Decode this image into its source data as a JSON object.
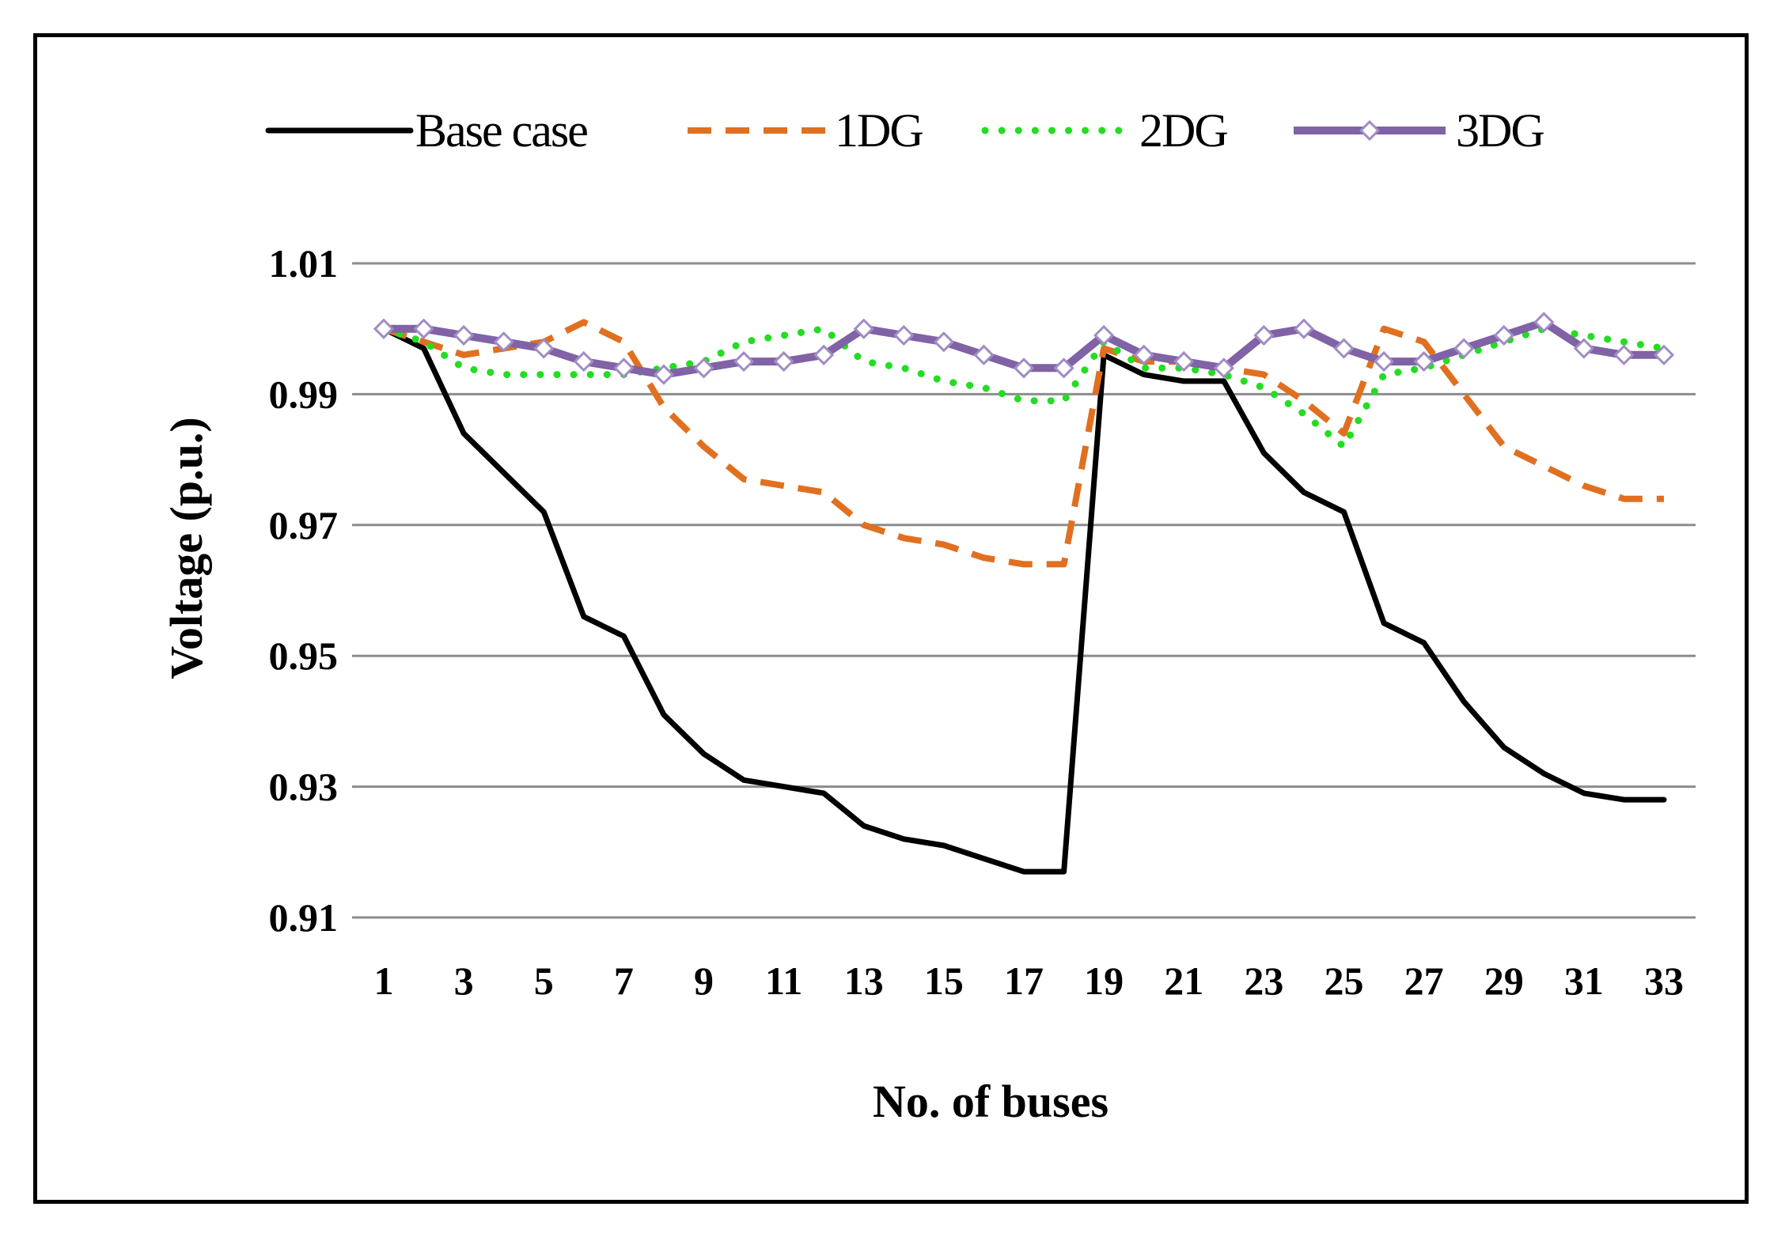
{
  "chart_data": {
    "type": "line",
    "title": "",
    "xlabel": "No. of buses",
    "ylabel": "Voltage (p.u.)",
    "ylim": [
      0.91,
      1.01
    ],
    "yticks": [
      "0.91",
      "0.93",
      "0.95",
      "0.97",
      "0.99",
      "1.01"
    ],
    "xlim": [
      1,
      33
    ],
    "xticks": [
      "1",
      "3",
      "5",
      "7",
      "9",
      "11",
      "13",
      "15",
      "17",
      "19",
      "21",
      "23",
      "25",
      "27",
      "29",
      "31",
      "33"
    ],
    "grid": true,
    "legend_position": "top",
    "x": [
      1,
      2,
      3,
      4,
      5,
      6,
      7,
      8,
      9,
      10,
      11,
      12,
      13,
      14,
      15,
      16,
      17,
      18,
      19,
      20,
      21,
      22,
      23,
      24,
      25,
      26,
      27,
      28,
      29,
      30,
      31,
      32,
      33
    ],
    "series": [
      {
        "name": "Base case",
        "color": "#000000",
        "style": "solid",
        "values": [
          1.0,
          0.997,
          0.984,
          0.978,
          0.972,
          0.956,
          0.953,
          0.941,
          0.935,
          0.931,
          0.93,
          0.929,
          0.924,
          0.922,
          0.921,
          0.919,
          0.917,
          0.917,
          0.996,
          0.993,
          0.992,
          0.992,
          0.981,
          0.975,
          0.972,
          0.955,
          0.952,
          0.943,
          0.936,
          0.932,
          0.929,
          0.928,
          0.928
        ]
      },
      {
        "name": "1DG",
        "color": "#E07020",
        "style": "dashed",
        "values": [
          1.0,
          0.998,
          0.996,
          0.997,
          0.998,
          1.001,
          0.998,
          0.988,
          0.982,
          0.977,
          0.976,
          0.975,
          0.97,
          0.968,
          0.967,
          0.965,
          0.964,
          0.964,
          0.997,
          0.995,
          0.995,
          0.994,
          0.993,
          0.989,
          0.984,
          1.0,
          0.998,
          0.99,
          0.982,
          0.979,
          0.976,
          0.974,
          0.974
        ]
      },
      {
        "name": "2DG",
        "color": "#22DD22",
        "style": "dotted",
        "values": [
          1.0,
          0.998,
          0.994,
          0.993,
          0.993,
          0.993,
          0.993,
          0.994,
          0.995,
          0.998,
          0.999,
          1.0,
          0.995,
          0.994,
          0.992,
          0.991,
          0.989,
          0.989,
          0.998,
          0.994,
          0.994,
          0.993,
          0.991,
          0.987,
          0.982,
          0.993,
          0.994,
          0.996,
          0.998,
          1.0,
          0.999,
          0.998,
          0.997
        ]
      },
      {
        "name": "3DG",
        "color": "#8062A6",
        "style": "solid-markers",
        "values": [
          1.0,
          1.0,
          0.999,
          0.998,
          0.997,
          0.995,
          0.994,
          0.993,
          0.994,
          0.995,
          0.995,
          0.996,
          1.0,
          0.999,
          0.998,
          0.996,
          0.994,
          0.994,
          0.999,
          0.996,
          0.995,
          0.994,
          0.999,
          1.0,
          0.997,
          0.995,
          0.995,
          0.997,
          0.999,
          1.001,
          0.997,
          0.996,
          0.996
        ]
      }
    ]
  }
}
